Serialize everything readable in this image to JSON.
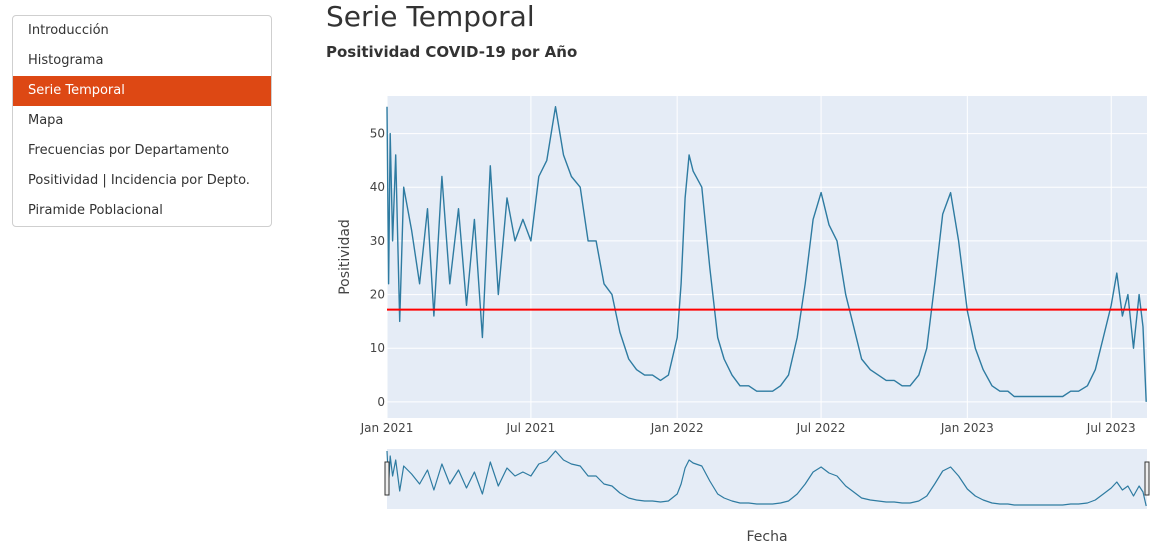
{
  "sidebar": {
    "items": [
      {
        "label": "Introducción",
        "active": false
      },
      {
        "label": "Histograma",
        "active": false
      },
      {
        "label": "Serie Temporal",
        "active": true
      },
      {
        "label": "Mapa",
        "active": false
      },
      {
        "label": "Frecuencias por Departamento",
        "active": false
      },
      {
        "label": "Positividad | Incidencia por Depto.",
        "active": false
      },
      {
        "label": "Piramide Poblacional",
        "active": false
      }
    ]
  },
  "header": {
    "title": "Serie Temporal",
    "subtitle": "Positividad COVID-19 por Año"
  },
  "colors": {
    "accent": "#dd4814",
    "line": "#2e7ba1",
    "reference_line": "#ff0000",
    "plot_bg": "#e5ecf6"
  },
  "chart_data": {
    "type": "line",
    "title": "",
    "xlabel": "Fecha",
    "ylabel": "Positividad",
    "x_range": [
      "2021-01-01",
      "2023-08-15"
    ],
    "ylim": [
      -3,
      57
    ],
    "x_ticks": [
      {
        "date": "2021-01-01",
        "label": "Jan 2021"
      },
      {
        "date": "2021-07-01",
        "label": "Jul 2021"
      },
      {
        "date": "2022-01-01",
        "label": "Jan 2022"
      },
      {
        "date": "2022-07-01",
        "label": "Jul 2022"
      },
      {
        "date": "2023-01-01",
        "label": "Jan 2023"
      },
      {
        "date": "2023-07-01",
        "label": "Jul 2023"
      }
    ],
    "y_ticks": [
      0,
      10,
      20,
      30,
      40,
      50
    ],
    "grid": true,
    "reference_line": {
      "y": 17.2
    },
    "range_slider": true,
    "series": [
      {
        "points": [
          [
            "2021-01-01",
            55
          ],
          [
            "2021-01-03",
            22
          ],
          [
            "2021-01-05",
            50
          ],
          [
            "2021-01-08",
            30
          ],
          [
            "2021-01-12",
            46
          ],
          [
            "2021-01-17",
            15
          ],
          [
            "2021-01-22",
            40
          ],
          [
            "2021-02-01",
            32
          ],
          [
            "2021-02-11",
            22
          ],
          [
            "2021-02-21",
            36
          ],
          [
            "2021-03-01",
            16
          ],
          [
            "2021-03-11",
            42
          ],
          [
            "2021-03-21",
            22
          ],
          [
            "2021-04-01",
            36
          ],
          [
            "2021-04-11",
            18
          ],
          [
            "2021-04-21",
            34
          ],
          [
            "2021-05-01",
            12
          ],
          [
            "2021-05-11",
            44
          ],
          [
            "2021-05-21",
            20
          ],
          [
            "2021-06-01",
            38
          ],
          [
            "2021-06-11",
            30
          ],
          [
            "2021-06-21",
            34
          ],
          [
            "2021-07-01",
            30
          ],
          [
            "2021-07-11",
            42
          ],
          [
            "2021-07-21",
            45
          ],
          [
            "2021-08-01",
            55
          ],
          [
            "2021-08-11",
            46
          ],
          [
            "2021-08-21",
            42
          ],
          [
            "2021-09-01",
            40
          ],
          [
            "2021-09-11",
            30
          ],
          [
            "2021-09-21",
            30
          ],
          [
            "2021-10-01",
            22
          ],
          [
            "2021-10-11",
            20
          ],
          [
            "2021-10-21",
            13
          ],
          [
            "2021-11-01",
            8
          ],
          [
            "2021-11-11",
            6
          ],
          [
            "2021-11-21",
            5
          ],
          [
            "2021-12-01",
            5
          ],
          [
            "2021-12-11",
            4
          ],
          [
            "2021-12-21",
            5
          ],
          [
            "2022-01-01",
            12
          ],
          [
            "2022-01-06",
            22
          ],
          [
            "2022-01-11",
            38
          ],
          [
            "2022-01-16",
            46
          ],
          [
            "2022-01-21",
            43
          ],
          [
            "2022-02-01",
            40
          ],
          [
            "2022-02-11",
            25
          ],
          [
            "2022-02-21",
            12
          ],
          [
            "2022-03-01",
            8
          ],
          [
            "2022-03-11",
            5
          ],
          [
            "2022-03-21",
            3
          ],
          [
            "2022-04-01",
            3
          ],
          [
            "2022-04-11",
            2
          ],
          [
            "2022-04-21",
            2
          ],
          [
            "2022-05-01",
            2
          ],
          [
            "2022-05-11",
            3
          ],
          [
            "2022-05-21",
            5
          ],
          [
            "2022-06-01",
            12
          ],
          [
            "2022-06-11",
            22
          ],
          [
            "2022-06-21",
            34
          ],
          [
            "2022-07-01",
            39
          ],
          [
            "2022-07-11",
            33
          ],
          [
            "2022-07-21",
            30
          ],
          [
            "2022-08-01",
            20
          ],
          [
            "2022-08-11",
            14
          ],
          [
            "2022-08-21",
            8
          ],
          [
            "2022-09-01",
            6
          ],
          [
            "2022-09-11",
            5
          ],
          [
            "2022-09-21",
            4
          ],
          [
            "2022-10-01",
            4
          ],
          [
            "2022-10-11",
            3
          ],
          [
            "2022-10-21",
            3
          ],
          [
            "2022-11-01",
            5
          ],
          [
            "2022-11-11",
            10
          ],
          [
            "2022-11-21",
            22
          ],
          [
            "2022-12-01",
            35
          ],
          [
            "2022-12-11",
            39
          ],
          [
            "2022-12-21",
            30
          ],
          [
            "2023-01-01",
            17
          ],
          [
            "2023-01-11",
            10
          ],
          [
            "2023-01-21",
            6
          ],
          [
            "2023-02-01",
            3
          ],
          [
            "2023-02-11",
            2
          ],
          [
            "2023-02-21",
            2
          ],
          [
            "2023-03-01",
            1
          ],
          [
            "2023-03-11",
            1
          ],
          [
            "2023-03-21",
            1
          ],
          [
            "2023-04-01",
            1
          ],
          [
            "2023-04-11",
            1
          ],
          [
            "2023-04-21",
            1
          ],
          [
            "2023-05-01",
            1
          ],
          [
            "2023-05-11",
            2
          ],
          [
            "2023-05-21",
            2
          ],
          [
            "2023-06-01",
            3
          ],
          [
            "2023-06-11",
            6
          ],
          [
            "2023-06-21",
            12
          ],
          [
            "2023-07-01",
            18
          ],
          [
            "2023-07-08",
            24
          ],
          [
            "2023-07-15",
            16
          ],
          [
            "2023-07-22",
            20
          ],
          [
            "2023-07-29",
            10
          ],
          [
            "2023-08-05",
            20
          ],
          [
            "2023-08-10",
            14
          ],
          [
            "2023-08-14",
            0
          ]
        ]
      }
    ]
  }
}
